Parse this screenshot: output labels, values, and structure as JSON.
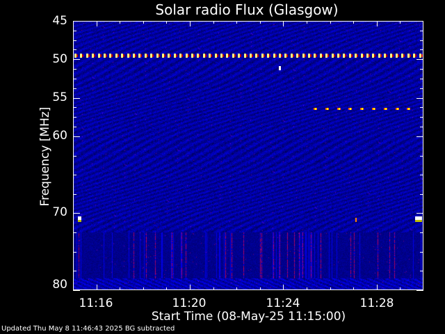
{
  "chart_data": {
    "type": "heatmap",
    "title": "Solar radio Flux (Glasgow)",
    "xlabel": "Start Time (08-May-25 11:15:00)",
    "ylabel": "Frequency [MHz]",
    "x_range": [
      "11:15",
      "11:30"
    ],
    "y_range": [
      45,
      80
    ],
    "y_inverted": true,
    "x_ticks": [
      "11:16",
      "11:20",
      "11:24",
      "11:28"
    ],
    "y_ticks": [
      "45",
      "50",
      "55",
      "60",
      "70",
      "80"
    ],
    "colormap": [
      "#000080",
      "#0000ff",
      "#c00000",
      "#ff8000",
      "#ffff00",
      "#ffffff"
    ],
    "features": [
      {
        "kind": "persistent interference",
        "frequency_mhz": 49.5,
        "time": "11:15-11:30"
      },
      {
        "kind": "intermittent interference",
        "frequency_mhz": 56.5,
        "time": "11:25-11:30"
      },
      {
        "kind": "broadband vertical stripes",
        "frequency_mhz": [
          72.5,
          78.5
        ]
      }
    ]
  },
  "footer": "Updated Thu May  8 11:46:43 2025    BG subtracted"
}
